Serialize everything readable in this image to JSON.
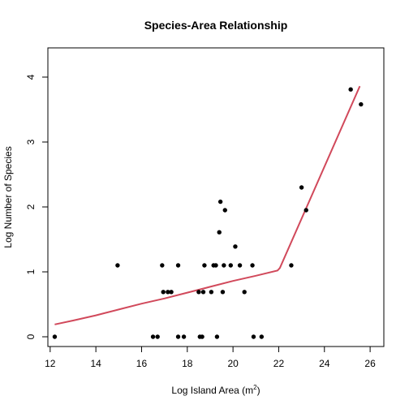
{
  "chart_data": {
    "type": "scatter",
    "title": "Species-Area Relationship",
    "xlabel": "Log Island Area (m",
    "xlabel_superscript": "2",
    "xlabel_suffix": ")",
    "ylabel": "Log Number of Species",
    "xlim": [
      11.9,
      26.6
    ],
    "ylim": [
      -0.15,
      4.45
    ],
    "xticks": [
      12,
      14,
      16,
      18,
      20,
      22,
      24,
      26
    ],
    "yticks": [
      0,
      1,
      2,
      3,
      4
    ],
    "grid": false,
    "point_color": "#000000",
    "line_color": "#d1495b",
    "points": [
      {
        "x": 12.2,
        "y": 0.0
      },
      {
        "x": 14.95,
        "y": 1.1
      },
      {
        "x": 16.5,
        "y": 0.0
      },
      {
        "x": 16.7,
        "y": 0.0
      },
      {
        "x": 16.9,
        "y": 1.1
      },
      {
        "x": 16.95,
        "y": 0.69
      },
      {
        "x": 17.15,
        "y": 0.69
      },
      {
        "x": 17.3,
        "y": 0.69
      },
      {
        "x": 17.6,
        "y": 1.1
      },
      {
        "x": 17.6,
        "y": 0.0
      },
      {
        "x": 17.85,
        "y": 0.0
      },
      {
        "x": 18.5,
        "y": 0.69
      },
      {
        "x": 18.55,
        "y": 0.0
      },
      {
        "x": 18.65,
        "y": 0.0
      },
      {
        "x": 18.7,
        "y": 0.69
      },
      {
        "x": 18.75,
        "y": 1.1
      },
      {
        "x": 19.05,
        "y": 0.69
      },
      {
        "x": 19.15,
        "y": 1.1
      },
      {
        "x": 19.25,
        "y": 1.1
      },
      {
        "x": 19.3,
        "y": 0.0
      },
      {
        "x": 19.4,
        "y": 1.61
      },
      {
        "x": 19.45,
        "y": 2.08
      },
      {
        "x": 19.55,
        "y": 0.69
      },
      {
        "x": 19.6,
        "y": 1.1
      },
      {
        "x": 19.65,
        "y": 1.95
      },
      {
        "x": 19.9,
        "y": 1.1
      },
      {
        "x": 20.1,
        "y": 1.39
      },
      {
        "x": 20.3,
        "y": 1.1
      },
      {
        "x": 20.5,
        "y": 0.69
      },
      {
        "x": 20.85,
        "y": 1.1
      },
      {
        "x": 20.9,
        "y": 0.0
      },
      {
        "x": 21.25,
        "y": 0.0
      },
      {
        "x": 22.55,
        "y": 1.1
      },
      {
        "x": 23.0,
        "y": 2.3
      },
      {
        "x": 23.2,
        "y": 1.95
      },
      {
        "x": 25.15,
        "y": 3.81
      },
      {
        "x": 25.6,
        "y": 3.58
      }
    ],
    "fit_line": {
      "x": [
        12.2,
        13.0,
        14.0,
        15.0,
        16.0,
        17.0,
        18.0,
        19.0,
        20.0,
        21.0,
        21.95,
        22.05,
        25.55
      ],
      "y": [
        0.19,
        0.25,
        0.33,
        0.42,
        0.51,
        0.59,
        0.68,
        0.77,
        0.86,
        0.94,
        1.02,
        1.06,
        3.86
      ]
    }
  }
}
